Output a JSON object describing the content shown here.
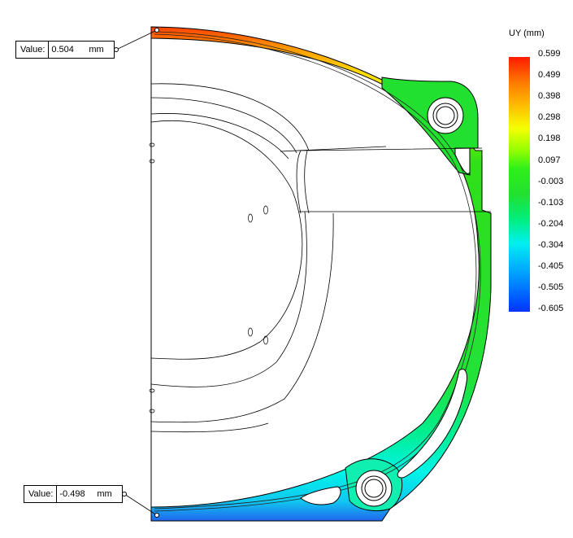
{
  "legend": {
    "title": "UY (mm)",
    "ticks": [
      "0.599",
      "0.499",
      "0.398",
      "0.298",
      "0.198",
      "0.097",
      "-0.003",
      "-0.103",
      "-0.204",
      "-0.304",
      "-0.405",
      "-0.505",
      "-0.605"
    ]
  },
  "probes": [
    {
      "label": "Value:",
      "value": "0.504",
      "unit": "mm"
    },
    {
      "label": "Value:",
      "value": "-0.498",
      "unit": "mm"
    }
  ]
}
